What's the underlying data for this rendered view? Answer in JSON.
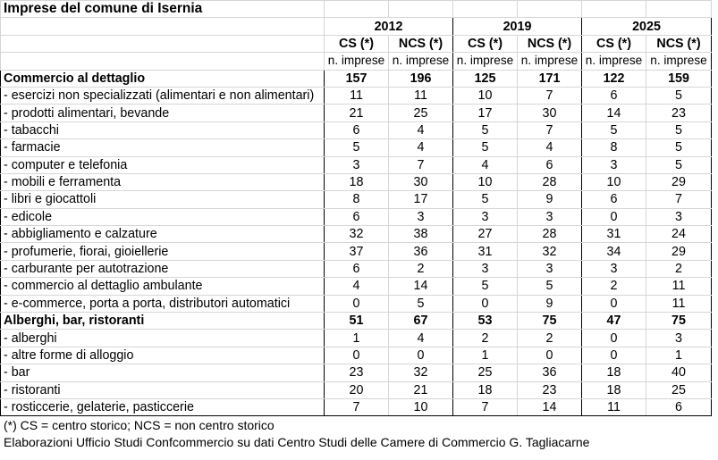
{
  "title": "Imprese del comune di Isernia",
  "years": [
    "2012",
    "2019",
    "2025"
  ],
  "sub_headers": [
    "CS (*)",
    "NCS (*)"
  ],
  "unit_label": "n. imprese",
  "rows": [
    {
      "label": "Commercio al dettaglio",
      "bold": true,
      "values": [
        "157",
        "196",
        "125",
        "171",
        "122",
        "159"
      ]
    },
    {
      "label": "- esercizi non specializzati (alimentari e non alimentari)",
      "bold": false,
      "values": [
        "11",
        "11",
        "10",
        "7",
        "6",
        "5"
      ]
    },
    {
      "label": "- prodotti alimentari, bevande",
      "bold": false,
      "values": [
        "21",
        "25",
        "17",
        "30",
        "14",
        "23"
      ]
    },
    {
      "label": "- tabacchi",
      "bold": false,
      "values": [
        "6",
        "4",
        "5",
        "7",
        "5",
        "5"
      ]
    },
    {
      "label": "- farmacie",
      "bold": false,
      "values": [
        "5",
        "4",
        "5",
        "4",
        "8",
        "5"
      ]
    },
    {
      "label": "- computer e telefonia",
      "bold": false,
      "values": [
        "3",
        "7",
        "4",
        "6",
        "3",
        "5"
      ]
    },
    {
      "label": "- mobili e ferramenta",
      "bold": false,
      "values": [
        "18",
        "30",
        "10",
        "28",
        "10",
        "29"
      ]
    },
    {
      "label": "- libri e giocattoli",
      "bold": false,
      "values": [
        "8",
        "17",
        "5",
        "9",
        "6",
        "7"
      ]
    },
    {
      "label": "- edicole",
      "bold": false,
      "values": [
        "6",
        "3",
        "3",
        "3",
        "0",
        "3"
      ]
    },
    {
      "label": "- abbigliamento e calzature",
      "bold": false,
      "values": [
        "32",
        "38",
        "27",
        "28",
        "31",
        "24"
      ]
    },
    {
      "label": "- profumerie, fiorai, gioiellerie",
      "bold": false,
      "values": [
        "37",
        "36",
        "31",
        "32",
        "34",
        "29"
      ]
    },
    {
      "label": "- carburante per autotrazione",
      "bold": false,
      "values": [
        "6",
        "2",
        "3",
        "3",
        "3",
        "2"
      ]
    },
    {
      "label": "- commercio al dettaglio ambulante",
      "bold": false,
      "values": [
        "4",
        "14",
        "5",
        "5",
        "2",
        "11"
      ]
    },
    {
      "label": "- e-commerce, porta a porta, distributori automatici",
      "bold": false,
      "values": [
        "0",
        "5",
        "0",
        "9",
        "0",
        "11"
      ]
    },
    {
      "label": "Alberghi, bar, ristoranti",
      "bold": true,
      "values": [
        "51",
        "67",
        "53",
        "75",
        "47",
        "75"
      ]
    },
    {
      "label": "- alberghi",
      "bold": false,
      "values": [
        "1",
        "4",
        "2",
        "2",
        "0",
        "3"
      ]
    },
    {
      "label": "- altre forme di alloggio",
      "bold": false,
      "values": [
        "0",
        "0",
        "1",
        "0",
        "0",
        "1"
      ]
    },
    {
      "label": "- bar",
      "bold": false,
      "values": [
        "23",
        "32",
        "25",
        "36",
        "18",
        "40"
      ]
    },
    {
      "label": "- ristoranti",
      "bold": false,
      "values": [
        "20",
        "21",
        "18",
        "23",
        "18",
        "25"
      ]
    },
    {
      "label": "- rosticcerie, gelaterie, pasticcerie",
      "bold": false,
      "values": [
        "7",
        "10",
        "7",
        "14",
        "11",
        "6"
      ]
    }
  ],
  "notes": [
    "(*) CS = centro storico; NCS = non centro storico",
    "Elaborazioni Ufficio Studi Confcommercio su dati Centro Studi delle Camere di Commercio G. Tagliacarne"
  ]
}
